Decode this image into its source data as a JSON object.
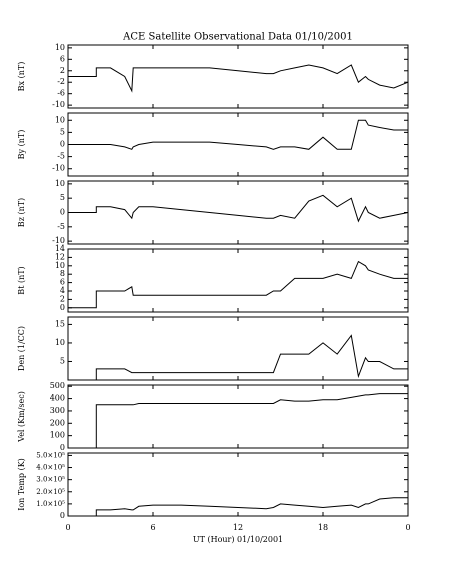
{
  "chart_data": [
    {
      "type": "line",
      "title": "ACE Satellite Observational Data   01/10/2001",
      "ylabel": "Bx (nT)",
      "x": [
        0,
        2,
        2,
        3,
        4,
        4.5,
        4.6,
        5,
        6,
        8,
        10,
        12,
        14,
        14.5,
        15,
        16,
        17,
        18,
        19,
        20,
        20.5,
        21,
        21.2,
        22,
        23,
        24
      ],
      "series": [
        {
          "name": "Bx",
          "color": "#000000",
          "values": [
            0,
            0,
            3,
            3,
            0,
            -5,
            3,
            3,
            3,
            3,
            3,
            2,
            1,
            1,
            2,
            3,
            4,
            3,
            1,
            4,
            -2,
            0,
            -1,
            -3,
            -4,
            -2
          ]
        }
      ],
      "xlim": [
        0,
        24
      ],
      "ylim": [
        -11,
        11
      ],
      "yticks": [
        -10,
        -6,
        -2,
        2,
        6,
        10
      ]
    },
    {
      "type": "line",
      "ylabel": "By (nT)",
      "x": [
        0,
        2,
        2,
        3,
        4,
        4.5,
        4.6,
        5,
        6,
        8,
        10,
        12,
        14,
        14.5,
        15,
        16,
        17,
        18,
        19,
        20,
        20.5,
        21,
        21.2,
        22,
        23,
        24
      ],
      "series": [
        {
          "name": "By",
          "color": "#000000",
          "values": [
            0,
            0,
            0,
            0,
            -1,
            -2,
            -1,
            0,
            1,
            1,
            1,
            0,
            -1,
            -2,
            -1,
            -1,
            -2,
            3,
            -2,
            -2,
            10,
            10,
            8,
            7,
            6,
            6
          ]
        }
      ],
      "xlim": [
        0,
        24
      ],
      "ylim": [
        -13,
        13
      ],
      "yticks": [
        -10,
        -5,
        0,
        5,
        10
      ]
    },
    {
      "type": "line",
      "ylabel": "Bz (nT)",
      "x": [
        0,
        2,
        2,
        3,
        4,
        4.5,
        4.6,
        5,
        6,
        8,
        10,
        12,
        14,
        14.5,
        15,
        16,
        17,
        18,
        19,
        20,
        20.5,
        21,
        21.2,
        22,
        23,
        24
      ],
      "series": [
        {
          "name": "Bz",
          "color": "#000000",
          "values": [
            0,
            0,
            2,
            2,
            1,
            -2,
            0,
            2,
            2,
            1,
            0,
            -1,
            -2,
            -2,
            -1,
            -2,
            4,
            6,
            2,
            5,
            -3,
            2,
            0,
            -2,
            -1,
            0
          ]
        }
      ],
      "xlim": [
        0,
        24
      ],
      "ylim": [
        -11,
        11
      ],
      "yticks": [
        -10,
        -5,
        0,
        5,
        10
      ]
    },
    {
      "type": "line",
      "ylabel": "Bt (nT)",
      "x": [
        0,
        2,
        2,
        3,
        4,
        4.5,
        4.6,
        5,
        6,
        8,
        10,
        12,
        14,
        14.5,
        15,
        16,
        17,
        18,
        19,
        20,
        20.5,
        21,
        21.2,
        22,
        23,
        24
      ],
      "series": [
        {
          "name": "Bt",
          "color": "#000000",
          "values": [
            0,
            0,
            4,
            4,
            4,
            5,
            3,
            3,
            3,
            3,
            3,
            3,
            3,
            4,
            4,
            7,
            7,
            7,
            8,
            7,
            11,
            10,
            9,
            8,
            7,
            7
          ]
        }
      ],
      "xlim": [
        0,
        24
      ],
      "ylim": [
        -1,
        14
      ],
      "yticks": [
        0,
        2,
        4,
        6,
        8,
        10,
        12,
        14
      ]
    },
    {
      "type": "line",
      "ylabel": "Den (1/CC)",
      "x": [
        0,
        2,
        2,
        3,
        4,
        4.5,
        4.6,
        5,
        6,
        8,
        10,
        12,
        14,
        14.5,
        15,
        16,
        17,
        18,
        19,
        20,
        20.5,
        21,
        21.2,
        22,
        23,
        24
      ],
      "series": [
        {
          "name": "Den",
          "color": "#000000",
          "values": [
            0,
            0,
            3,
            3,
            3,
            2,
            2,
            2,
            2,
            2,
            2,
            2,
            2,
            2,
            7,
            7,
            7,
            10,
            7,
            12,
            1,
            6,
            5,
            5,
            3,
            3
          ]
        }
      ],
      "xlim": [
        0,
        24
      ],
      "ylim": [
        0,
        17
      ],
      "yticks": [
        5,
        10,
        15
      ]
    },
    {
      "type": "line",
      "ylabel": "Vel (Km/sec)",
      "x": [
        0,
        2,
        2,
        3,
        4,
        4.5,
        4.6,
        5,
        6,
        8,
        10,
        12,
        14,
        14.5,
        15,
        16,
        17,
        18,
        19,
        20,
        20.5,
        21,
        21.2,
        22,
        23,
        24
      ],
      "series": [
        {
          "name": "Vel",
          "color": "#000000",
          "values": [
            0,
            0,
            350,
            350,
            350,
            350,
            350,
            360,
            360,
            360,
            360,
            360,
            360,
            360,
            390,
            380,
            380,
            390,
            390,
            410,
            420,
            430,
            430,
            440,
            440,
            440
          ]
        }
      ],
      "xlim": [
        0,
        24
      ],
      "ylim": [
        0,
        510
      ],
      "yticks": [
        0,
        100,
        200,
        300,
        400,
        500
      ]
    },
    {
      "type": "line",
      "ylabel": "Ion Temp (K)",
      "xlabel": "UT (Hour)  01/10/2001",
      "x": [
        0,
        2,
        2,
        3,
        4,
        4.5,
        4.6,
        5,
        6,
        8,
        10,
        12,
        14,
        14.5,
        15,
        16,
        17,
        18,
        19,
        20,
        20.5,
        21,
        21.2,
        22,
        23,
        24
      ],
      "series": [
        {
          "name": "Ion Temp",
          "color": "#000000",
          "values": [
            0,
            0,
            50000,
            50000,
            60000,
            50000,
            50000,
            80000,
            90000,
            90000,
            80000,
            70000,
            60000,
            70000,
            100000,
            90000,
            80000,
            70000,
            80000,
            90000,
            70000,
            100000,
            100000,
            140000,
            150000,
            150000
          ]
        }
      ],
      "xlim": [
        0,
        24
      ],
      "xticks": [
        0,
        6,
        12,
        18,
        {
          "value": 24,
          "label": "0"
        }
      ],
      "ylim": [
        0,
        520000
      ],
      "yticks": [
        0,
        {
          "value": 100000,
          "label": "1.0×10⁵"
        },
        {
          "value": 200000,
          "label": "2.0×10⁵"
        },
        {
          "value": 300000,
          "label": "3.0×10⁵"
        },
        {
          "value": 400000,
          "label": "4.0×10⁵"
        },
        {
          "value": 500000,
          "label": "5.0×10⁵"
        }
      ]
    }
  ]
}
